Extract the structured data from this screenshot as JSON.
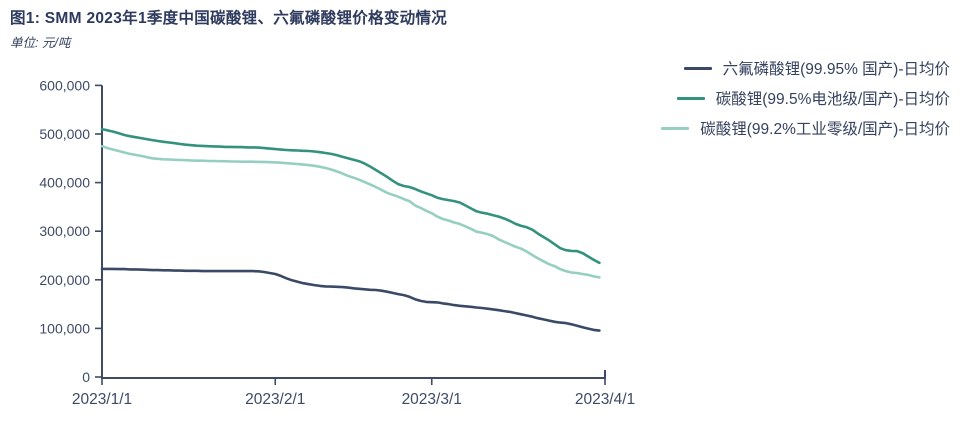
{
  "header": {
    "title": "图1: SMM 2023年1季度中国碳酸锂、六氟磷酸锂价格变动情况",
    "unit": "单位: 元/吨"
  },
  "chart_data": {
    "type": "line",
    "title": "SMM 2023年1季度中国碳酸锂、六氟磷酸锂价格变动情况",
    "ylabel": "元/吨",
    "xlabel": "",
    "ylim": [
      0,
      600000
    ],
    "grid": false,
    "legend_position": "top-right",
    "x_unit": "day-index from 2023/1/1, daily data through 2023/3/31",
    "x_ticks": [
      {
        "day": 0,
        "label": "2023/1/1"
      },
      {
        "day": 31,
        "label": "2023/2/1"
      },
      {
        "day": 59,
        "label": "2023/3/1"
      },
      {
        "day": 90,
        "label": "2023/4/1"
      }
    ],
    "y_ticks": [
      {
        "value": 0,
        "label": "0"
      },
      {
        "value": 100000,
        "label": "100,000"
      },
      {
        "value": 200000,
        "label": "200,000"
      },
      {
        "value": 300000,
        "label": "300,000"
      },
      {
        "value": 400000,
        "label": "400,000"
      },
      {
        "value": 500000,
        "label": "500,000"
      },
      {
        "value": 600000,
        "label": "600,000"
      }
    ],
    "series": [
      {
        "name": "六氟磷酸锂(99.95% 国产)-日均价",
        "color": "#3a4a66",
        "values": [
          222500,
          222500,
          222500,
          222000,
          222000,
          221500,
          221500,
          221000,
          220500,
          220000,
          220000,
          219500,
          219500,
          219000,
          219000,
          218500,
          218500,
          218500,
          218000,
          218000,
          218000,
          218000,
          218000,
          218000,
          218000,
          218000,
          218000,
          218000,
          217500,
          216000,
          214000,
          212000,
          208000,
          203000,
          199000,
          196000,
          193000,
          191000,
          189000,
          187500,
          186500,
          186000,
          185500,
          185000,
          184000,
          182500,
          181500,
          180500,
          179500,
          179000,
          177500,
          175500,
          173000,
          170500,
          168500,
          165000,
          160000,
          156500,
          154500,
          154000,
          153500,
          151500,
          150000,
          148000,
          146500,
          145500,
          144500,
          143000,
          142000,
          140500,
          139000,
          137500,
          135500,
          134000,
          131500,
          129000,
          126500,
          124000,
          121000,
          118500,
          116000,
          113500,
          112000,
          111000,
          108500,
          105500,
          102500,
          99500,
          97000,
          95500
        ]
      },
      {
        "name": "碳酸锂(99.5%电池级/国产)-日均价",
        "color": "#33927e",
        "values": [
          510000,
          507500,
          505000,
          501500,
          498000,
          495500,
          493500,
          491500,
          489500,
          487500,
          485500,
          484000,
          482500,
          481000,
          479500,
          478000,
          477000,
          476000,
          475500,
          475000,
          474500,
          474000,
          473500,
          473500,
          473000,
          473000,
          472500,
          472500,
          472000,
          471000,
          470000,
          469000,
          468000,
          467000,
          466500,
          466000,
          465500,
          465000,
          464000,
          462500,
          461000,
          459000,
          456500,
          453000,
          450000,
          447000,
          444000,
          439000,
          433000,
          426000,
          419000,
          412000,
          404000,
          397000,
          393000,
          391000,
          387000,
          382000,
          378000,
          374000,
          369000,
          366000,
          364000,
          362000,
          359000,
          353000,
          347000,
          341000,
          338000,
          336000,
          333000,
          330000,
          326000,
          321000,
          315000,
          311000,
          308000,
          303000,
          295000,
          288000,
          281000,
          273000,
          265000,
          261000,
          259500,
          259000,
          255000,
          248000,
          241000,
          235000
        ]
      },
      {
        "name": "碳酸锂(99.2%工业零级/国产)-日均价",
        "color": "#96cfc2",
        "values": [
          475000,
          471000,
          468000,
          465000,
          462000,
          459000,
          457000,
          455000,
          452500,
          450000,
          449000,
          448000,
          447500,
          447000,
          446500,
          446000,
          445500,
          445000,
          445000,
          444500,
          444500,
          444000,
          444000,
          443500,
          443500,
          443000,
          443000,
          443000,
          442500,
          442500,
          442000,
          441500,
          441000,
          440000,
          439000,
          438000,
          437000,
          436000,
          434500,
          432500,
          430000,
          427000,
          423000,
          419000,
          414000,
          410000,
          406000,
          401000,
          396000,
          391000,
          385000,
          379000,
          375000,
          371000,
          366000,
          362000,
          353000,
          348000,
          342000,
          337000,
          330000,
          325000,
          322000,
          318000,
          315000,
          310000,
          305000,
          299000,
          297000,
          294000,
          290000,
          283000,
          278000,
          273000,
          268000,
          264000,
          258000,
          251000,
          244000,
          238000,
          232000,
          228000,
          222000,
          218000,
          215000,
          214000,
          212000,
          210000,
          207000,
          205000
        ]
      }
    ]
  }
}
